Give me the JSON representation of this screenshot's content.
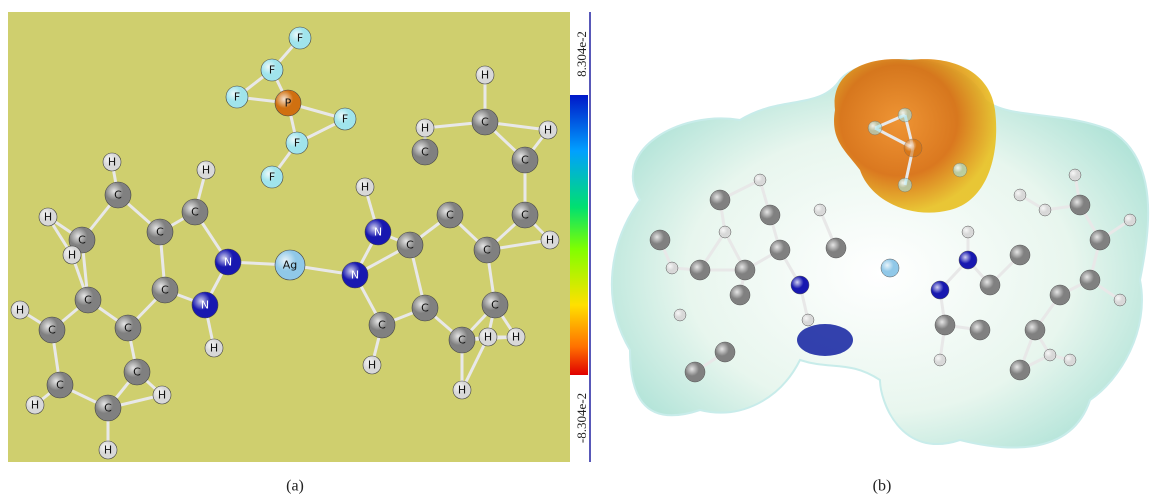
{
  "panel_a": {
    "atoms": [
      "P",
      "F",
      "F",
      "F",
      "F",
      "F",
      "F",
      "Ag",
      "N",
      "N",
      "H",
      "C",
      "H",
      "C",
      "C",
      "C",
      "H",
      "C",
      "H",
      "H",
      "C",
      "C",
      "H",
      "C",
      "H",
      "C",
      "H",
      "C",
      "H",
      "C",
      "N",
      "H",
      "N",
      "C",
      "C",
      "H",
      "C",
      "C",
      "H",
      "H",
      "H",
      "C",
      "C",
      "C",
      "C",
      "H",
      "C",
      "H",
      "C",
      "H",
      "C",
      "H"
    ],
    "colorbar": {
      "max_label": "8.304e-2",
      "min_label": "-8.304e-2"
    },
    "caption": "(a)"
  },
  "panel_b": {
    "caption": "(b)"
  }
}
